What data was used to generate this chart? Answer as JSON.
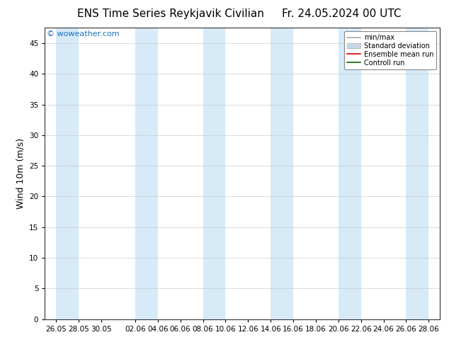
{
  "title_left": "ENS Time Series Reykjavik Civilian",
  "title_right": "Fr. 24.05.2024 00 UTC",
  "ylabel": "Wind 10m (m/s)",
  "watermark": "© woweather.com",
  "xlim_start": "2024-05-25 00:00",
  "xlim_end": "2024-06-29 00:00",
  "ylim": [
    0,
    47.5
  ],
  "yticks": [
    0,
    5,
    10,
    15,
    20,
    25,
    30,
    35,
    40,
    45
  ],
  "xtick_labels": [
    "26.05",
    "28.05",
    "30.05",
    "02.06",
    "04.06",
    "06.06",
    "08.06",
    "10.06",
    "12.06",
    "14.06",
    "16.06",
    "18.06",
    "20.06",
    "22.06",
    "24.06",
    "26.06",
    "28.06"
  ],
  "xtick_offsets_days": [
    1,
    3,
    5,
    8,
    10,
    12,
    14,
    16,
    18,
    20,
    22,
    24,
    26,
    28,
    30,
    32,
    34
  ],
  "band_color": "#d6eaf8",
  "band_offsets": [
    [
      1,
      3
    ],
    [
      8,
      10
    ],
    [
      14,
      16
    ],
    [
      20,
      22
    ],
    [
      26,
      28
    ],
    [
      32,
      34
    ]
  ],
  "legend_entries": [
    {
      "label": "min/max",
      "color": "#aaaaaa",
      "lw": 1.2,
      "style": "-",
      "type": "line"
    },
    {
      "label": "Standard deviation",
      "color": "#c8d8e8",
      "lw": 8,
      "style": "-",
      "type": "patch"
    },
    {
      "label": "Ensemble mean run",
      "color": "#cc0000",
      "lw": 1.2,
      "style": "-",
      "type": "line"
    },
    {
      "label": "Controll run",
      "color": "#006600",
      "lw": 1.2,
      "style": "-",
      "type": "line"
    }
  ],
  "bg_color": "#ffffff",
  "plot_bg_color": "#ffffff",
  "title_fontsize": 11,
  "tick_fontsize": 7.5,
  "ylabel_fontsize": 9,
  "watermark_fontsize": 8,
  "watermark_color": "#1a6fc4",
  "legend_fontsize": 7
}
